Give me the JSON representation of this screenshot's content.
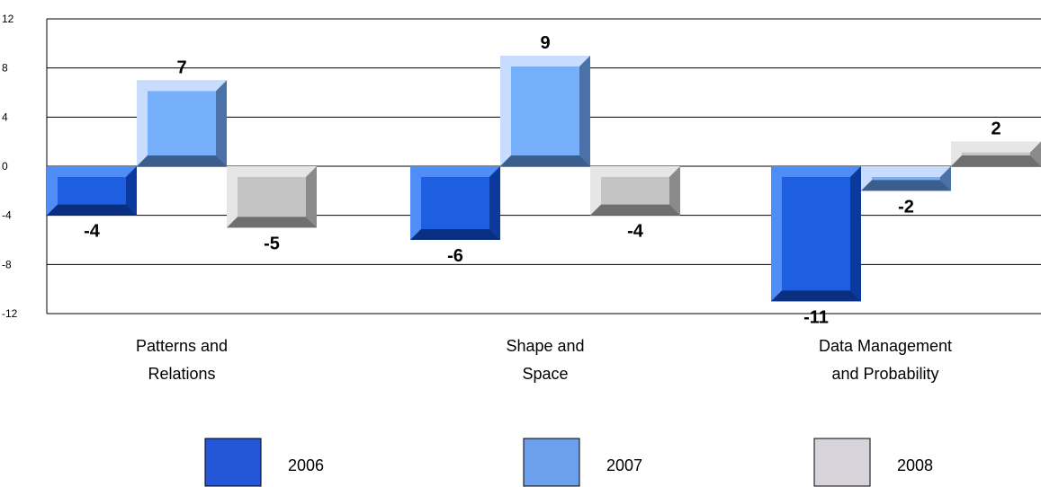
{
  "chart_data": {
    "type": "bar",
    "categories": [
      "Patterns and Relations",
      "Shape and Space",
      "Data Management and Probability"
    ],
    "category_lines": [
      [
        "Patterns and",
        "Relations"
      ],
      [
        "Shape and",
        "Space"
      ],
      [
        "Data Management",
        "and Probability"
      ]
    ],
    "series": [
      {
        "name": "2006",
        "values": [
          -4,
          -6,
          -11
        ]
      },
      {
        "name": "2007",
        "values": [
          7,
          9,
          -2
        ]
      },
      {
        "name": "2008",
        "values": [
          -5,
          -4,
          2
        ]
      }
    ],
    "data_labels": [
      [
        "-4",
        "7",
        "-5"
      ],
      [
        "-6",
        "9",
        "-4"
      ],
      [
        "-11",
        "-2",
        "2"
      ]
    ],
    "ylim": [
      -12,
      12
    ],
    "yticks": [
      "12",
      "8",
      "4",
      "0",
      "-4",
      "-8",
      "-12"
    ],
    "grid": true,
    "legend_position": "bottom",
    "colors": {
      "2006": {
        "front": "#1e5ee0",
        "top": "#4f8df7",
        "side": "#0b3a9c",
        "bottom": "#0a2f80"
      },
      "2007": {
        "front": "#76b0fb",
        "top": "#c8dcfd",
        "side": "#4a72a8",
        "bottom": "#3c5e8c"
      },
      "2008": {
        "front": "#c4c4c4",
        "top": "#e6e6e6",
        "side": "#8a8a8a",
        "bottom": "#6f6f6f"
      }
    },
    "legend_swatches": {
      "2006": "#2456d8",
      "2007": "#6da0ec",
      "2008": "#d7d3da"
    },
    "xlabel": "",
    "ylabel": ""
  }
}
